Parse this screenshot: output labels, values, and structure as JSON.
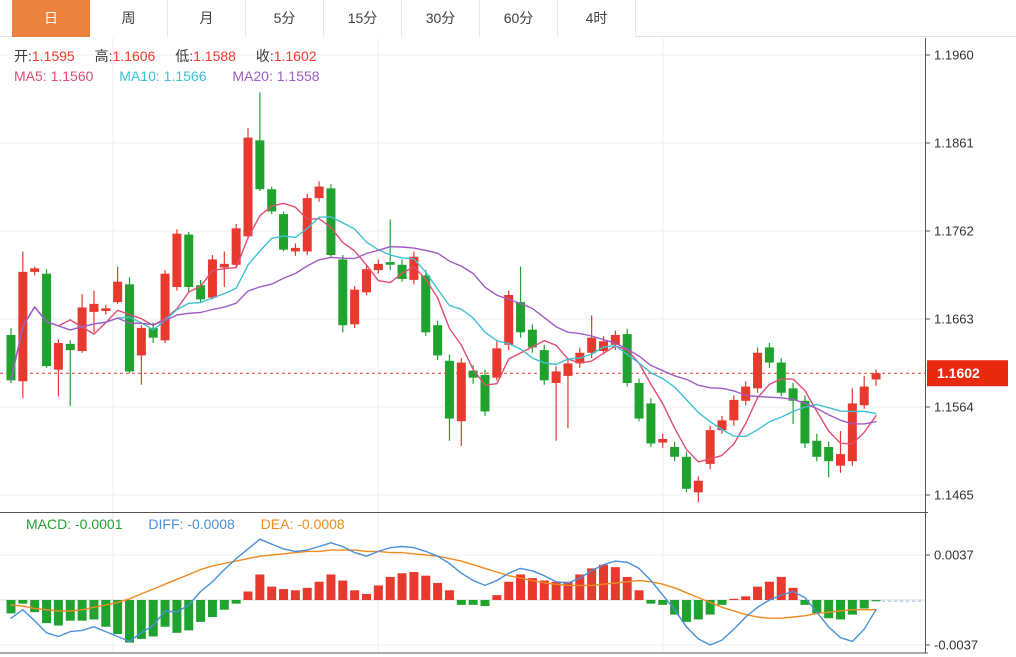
{
  "tabs": {
    "items": [
      {
        "name": "day",
        "label": "日",
        "selected": true
      },
      {
        "name": "week",
        "label": "周",
        "selected": false
      },
      {
        "name": "month",
        "label": "月",
        "selected": false
      },
      {
        "name": "5min",
        "label": "5分",
        "selected": false
      },
      {
        "name": "15min",
        "label": "15分",
        "selected": false
      },
      {
        "name": "30min",
        "label": "30分",
        "selected": false
      },
      {
        "name": "60min",
        "label": "60分",
        "selected": false
      },
      {
        "name": "4hour",
        "label": "4时",
        "selected": false
      }
    ]
  },
  "legend_main": {
    "open_label": "开:",
    "open": "1.1595",
    "high_label": "高:",
    "high": "1.1606",
    "low_label": "低:",
    "low": "1.1588",
    "close_label": "收:",
    "close": "1.1602",
    "ma5_label": "MA5:",
    "ma5": "1.1560",
    "ma10_label": "MA10:",
    "ma10": "1.1566",
    "ma20_label": "MA20:",
    "ma20": "1.1558"
  },
  "legend_macd": {
    "macd_label": "MACD:",
    "macd": "-0.0001",
    "diff_label": "DIFF:",
    "diff": "-0.0008",
    "dea_label": "DEA:",
    "dea": "-0.0008"
  },
  "colors": {
    "up": "#e8392e",
    "down": "#20a32e",
    "ma5": "#e14d72",
    "ma10": "#3fc0d4",
    "ma20": "#a05cc4",
    "diff": "#4a90d9",
    "dea": "#ef8a1f",
    "macd_text": "#21a12c",
    "tab_selected_bg": "#eb823e",
    "price_badge_bg": "#e8290f",
    "value_text": "#ef3b2e",
    "axis_text": "#333333",
    "axis_line": "#555555",
    "grid": "#efefef",
    "grid_vertical": "#ececec",
    "zero_line": "#dcdcdc",
    "diff_dash": "#8fc1ea"
  },
  "chart_data": {
    "type": "candlestick+macd",
    "title": "",
    "y_ticks": [
      1.196,
      1.1861,
      1.1762,
      1.1663,
      1.1564,
      1.1465
    ],
    "current_price": 1.1602,
    "current_price_label": "1.1602",
    "ma_periods": [
      5,
      10,
      20
    ],
    "macd_ticks": [
      0.0037,
      -0.0037
    ],
    "candles_format": [
      "open",
      "high",
      "low",
      "close"
    ],
    "candles": [
      [
        1.1645,
        1.1653,
        1.1591,
        1.1594
      ],
      [
        1.1593,
        1.1739,
        1.1574,
        1.1716
      ],
      [
        1.1716,
        1.1722,
        1.1712,
        1.172
      ],
      [
        1.1714,
        1.1719,
        1.1608,
        1.161
      ],
      [
        1.1606,
        1.164,
        1.1576,
        1.1636
      ],
      [
        1.1635,
        1.1639,
        1.1565,
        1.1628
      ],
      [
        1.1627,
        1.1691,
        1.1625,
        1.1676
      ],
      [
        1.1671,
        1.1695,
        1.1648,
        1.168
      ],
      [
        1.1672,
        1.1679,
        1.1668,
        1.1675
      ],
      [
        1.1682,
        1.1722,
        1.168,
        1.1705
      ],
      [
        1.1702,
        1.171,
        1.1602,
        1.1604
      ],
      [
        1.1622,
        1.1656,
        1.1589,
        1.1653
      ],
      [
        1.1653,
        1.1659,
        1.1636,
        1.1642
      ],
      [
        1.1639,
        1.1718,
        1.1636,
        1.1714
      ],
      [
        1.1699,
        1.1764,
        1.1695,
        1.1759
      ],
      [
        1.1758,
        1.1761,
        1.1693,
        1.1699
      ],
      [
        1.1701,
        1.1707,
        1.1682,
        1.1685
      ],
      [
        1.1687,
        1.1735,
        1.1685,
        1.173
      ],
      [
        1.1721,
        1.1739,
        1.1699,
        1.1725
      ],
      [
        1.1724,
        1.177,
        1.172,
        1.1765
      ],
      [
        1.1756,
        1.1878,
        1.1753,
        1.1867
      ],
      [
        1.1864,
        1.1918,
        1.1807,
        1.1809
      ],
      [
        1.1809,
        1.1812,
        1.1781,
        1.1784
      ],
      [
        1.1781,
        1.1784,
        1.1739,
        1.1741
      ],
      [
        1.1739,
        1.1748,
        1.1734,
        1.1743
      ],
      [
        1.1739,
        1.1804,
        1.1735,
        1.1799
      ],
      [
        1.1799,
        1.1818,
        1.1795,
        1.1812
      ],
      [
        1.181,
        1.1815,
        1.1733,
        1.1735
      ],
      [
        1.173,
        1.1735,
        1.1648,
        1.1656
      ],
      [
        1.1657,
        1.17,
        1.1653,
        1.1696
      ],
      [
        1.1693,
        1.1724,
        1.169,
        1.1719
      ],
      [
        1.1718,
        1.173,
        1.1714,
        1.1725
      ],
      [
        1.1727,
        1.1775,
        1.1718,
        1.1724
      ],
      [
        1.1724,
        1.173,
        1.1705,
        1.1708
      ],
      [
        1.1707,
        1.1739,
        1.1702,
        1.1733
      ],
      [
        1.1712,
        1.1718,
        1.1644,
        1.1648
      ],
      [
        1.1656,
        1.1661,
        1.1617,
        1.1622
      ],
      [
        1.1616,
        1.1623,
        1.1526,
        1.1551
      ],
      [
        1.1548,
        1.1619,
        1.152,
        1.1614
      ],
      [
        1.1605,
        1.1611,
        1.159,
        1.1597
      ],
      [
        1.16,
        1.1606,
        1.1554,
        1.1559
      ],
      [
        1.1597,
        1.1639,
        1.1594,
        1.163
      ],
      [
        1.1634,
        1.1695,
        1.1628,
        1.169
      ],
      [
        1.1682,
        1.1722,
        1.1642,
        1.1648
      ],
      [
        1.1651,
        1.1657,
        1.1625,
        1.1631
      ],
      [
        1.1628,
        1.1634,
        1.1589,
        1.1594
      ],
      [
        1.1591,
        1.161,
        1.1526,
        1.1604
      ],
      [
        1.1599,
        1.1619,
        1.154,
        1.1613
      ],
      [
        1.1613,
        1.1631,
        1.1608,
        1.1625
      ],
      [
        1.1625,
        1.1667,
        1.1619,
        1.1642
      ],
      [
        1.1627,
        1.1644,
        1.1623,
        1.1638
      ],
      [
        1.1634,
        1.165,
        1.1628,
        1.1645
      ],
      [
        1.1646,
        1.1652,
        1.1587,
        1.1591
      ],
      [
        1.1591,
        1.1596,
        1.1548,
        1.1551
      ],
      [
        1.1568,
        1.1574,
        1.1519,
        1.1523
      ],
      [
        1.1524,
        1.1534,
        1.1518,
        1.1528
      ],
      [
        1.1519,
        1.1525,
        1.1503,
        1.1508
      ],
      [
        1.1508,
        1.1514,
        1.1468,
        1.1472
      ],
      [
        1.1468,
        1.1486,
        1.1457,
        1.1481
      ],
      [
        1.15,
        1.1543,
        1.1494,
        1.1538
      ],
      [
        1.1538,
        1.1554,
        1.1534,
        1.1549
      ],
      [
        1.1549,
        1.1577,
        1.1543,
        1.1572
      ],
      [
        1.1571,
        1.1593,
        1.1566,
        1.1587
      ],
      [
        1.1585,
        1.1631,
        1.158,
        1.1625
      ],
      [
        1.1631,
        1.1636,
        1.1608,
        1.1614
      ],
      [
        1.1614,
        1.1619,
        1.1576,
        1.158
      ],
      [
        1.1585,
        1.1591,
        1.1545,
        1.1571
      ],
      [
        1.1571,
        1.1577,
        1.1518,
        1.1523
      ],
      [
        1.1526,
        1.1534,
        1.1503,
        1.1508
      ],
      [
        1.1519,
        1.1525,
        1.1485,
        1.1503
      ],
      [
        1.1498,
        1.1537,
        1.149,
        1.1511
      ],
      [
        1.1503,
        1.1585,
        1.1498,
        1.1568
      ],
      [
        1.1566,
        1.1599,
        1.1562,
        1.1587
      ],
      [
        1.1595,
        1.1606,
        1.1588,
        1.1602
      ]
    ],
    "macd": {
      "hist": [
        -0.0011,
        -0.0003,
        -0.001,
        -0.0019,
        -0.0021,
        -0.0017,
        -0.0017,
        -0.0016,
        -0.0022,
        -0.0028,
        -0.0035,
        -0.0032,
        -0.003,
        -0.0022,
        -0.0027,
        -0.0025,
        -0.0018,
        -0.0014,
        -0.0008,
        -0.0003,
        0.0007,
        0.0021,
        0.0011,
        0.0009,
        0.0008,
        0.001,
        0.0015,
        0.0021,
        0.0016,
        0.0008,
        0.0005,
        0.0012,
        0.0019,
        0.0022,
        0.0023,
        0.002,
        0.0014,
        0.0008,
        -0.0004,
        -0.0004,
        -0.0005,
        0.0004,
        0.0015,
        0.0021,
        0.0018,
        0.0016,
        0.0015,
        0.0015,
        0.0021,
        0.0026,
        0.0029,
        0.0027,
        0.0019,
        0.0008,
        -0.0003,
        -0.0004,
        -0.0012,
        -0.0018,
        -0.0016,
        -0.0012,
        -0.0004,
        0.0001,
        0.0003,
        0.0011,
        0.0015,
        0.0019,
        0.001,
        -0.0004,
        -0.0011,
        -0.0015,
        -0.0016,
        -0.0012,
        -0.0007,
        -0.0001
      ],
      "diff": [
        -0.0015,
        -0.0008,
        -0.0017,
        -0.0027,
        -0.003,
        -0.0026,
        -0.0025,
        -0.0022,
        -0.0026,
        -0.003,
        -0.0034,
        -0.0027,
        -0.0021,
        -0.0009,
        -0.001,
        -0.0004,
        0.0007,
        0.0015,
        0.0025,
        0.0034,
        0.0042,
        0.005,
        0.0046,
        0.0042,
        0.004,
        0.0041,
        0.0044,
        0.0047,
        0.0044,
        0.0039,
        0.0036,
        0.004,
        0.0043,
        0.0044,
        0.0043,
        0.004,
        0.0036,
        0.003,
        0.0022,
        0.0016,
        0.0012,
        0.0016,
        0.0022,
        0.0026,
        0.0024,
        0.002,
        0.0015,
        0.0014,
        0.0018,
        0.0024,
        0.0029,
        0.0032,
        0.0031,
        0.0026,
        0.0016,
        0.0004,
        -0.0008,
        -0.0022,
        -0.0032,
        -0.0037,
        -0.0033,
        -0.0024,
        -0.0014,
        -0.0006,
        0.0,
        0.0004,
        0.0007,
        0.0002,
        -0.001,
        -0.0022,
        -0.0031,
        -0.0034,
        -0.0024,
        -0.0008
      ],
      "dea": [
        -0.0004,
        -0.0005,
        -0.0007,
        -0.0008,
        -0.0009,
        -0.0009,
        -0.0008,
        -0.0006,
        -0.0004,
        -0.0002,
        0.0001,
        0.0005,
        0.0009,
        0.0013,
        0.0017,
        0.0021,
        0.0025,
        0.0028,
        0.003,
        0.0032,
        0.0034,
        0.0036,
        0.0037,
        0.0038,
        0.0039,
        0.004,
        0.004,
        0.0041,
        0.0041,
        0.0041,
        0.004,
        0.004,
        0.0039,
        0.0039,
        0.0038,
        0.0037,
        0.0036,
        0.0034,
        0.0032,
        0.0029,
        0.0026,
        0.0023,
        0.002,
        0.0018,
        0.0016,
        0.0014,
        0.0013,
        0.0012,
        0.0012,
        0.0012,
        0.0013,
        0.0014,
        0.0015,
        0.0016,
        0.0015,
        0.0013,
        0.001,
        0.0006,
        0.0002,
        -0.0002,
        -0.0006,
        -0.0009,
        -0.0012,
        -0.0014,
        -0.0015,
        -0.0015,
        -0.0014,
        -0.0013,
        -0.0011,
        -0.001,
        -0.0009,
        -0.0008,
        -0.0008,
        -0.0008
      ]
    }
  }
}
